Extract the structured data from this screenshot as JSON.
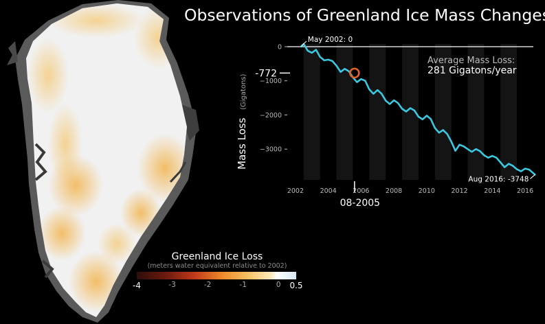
{
  "title": "Observations of Greenland Ice Mass Changes",
  "legend": {
    "title": "Greenland Ice Loss",
    "subtitle": "(meters water equivalent relative to 2002)",
    "ticks": [
      "-4",
      "-3",
      "-2",
      "-1",
      "0",
      "0.5"
    ]
  },
  "colors": {
    "line": "#3cc8e0",
    "marker": "#e0612a",
    "axis": "#ffffff",
    "band": "#141414",
    "ice": "#f2f2f2",
    "ice_loss": "#f3b54f"
  },
  "chart_data": {
    "type": "line",
    "title": "Observations of Greenland Ice Mass Changes",
    "ylabel": "Mass Loss",
    "ylabel_unit": "(Gigatons)",
    "xlabel": "",
    "xlim": [
      2001.5,
      2016.5
    ],
    "ylim": [
      -3900,
      80
    ],
    "x_ticks": [
      "2002",
      "2004",
      "2006",
      "2008",
      "2010",
      "2012",
      "2014",
      "2016"
    ],
    "y_ticks": [
      "0",
      "−1000",
      "−2000",
      "−3000"
    ],
    "grid": false,
    "series": [
      {
        "x": [
          2002.33,
          2002.5,
          2002.75,
          2003.0,
          2003.25,
          2003.5,
          2003.75,
          2004.0,
          2004.25,
          2004.5,
          2004.75,
          2005.0,
          2005.25,
          2005.5,
          2005.75,
          2006.0,
          2006.25,
          2006.5,
          2006.75,
          2007.0,
          2007.25,
          2007.5,
          2007.75,
          2008.0,
          2008.25,
          2008.5,
          2008.75,
          2009.0,
          2009.25,
          2009.5,
          2009.75,
          2010.0,
          2010.25,
          2010.5,
          2010.75,
          2011.0,
          2011.25,
          2011.5,
          2011.75,
          2012.0,
          2012.25,
          2012.5,
          2012.75,
          2013.0,
          2013.25,
          2013.5,
          2013.75,
          2014.0,
          2014.25,
          2014.5,
          2014.75,
          2015.0,
          2015.25,
          2015.5,
          2015.75,
          2016.0,
          2016.25,
          2016.6
        ],
        "y": [
          0,
          80,
          -120,
          -180,
          -90,
          -300,
          -400,
          -380,
          -420,
          -560,
          -740,
          -650,
          -720,
          -900,
          -1040,
          -950,
          -1000,
          -1250,
          -1380,
          -1270,
          -1380,
          -1580,
          -1680,
          -1570,
          -1650,
          -1820,
          -1900,
          -1800,
          -1870,
          -2050,
          -2130,
          -2020,
          -2120,
          -2380,
          -2520,
          -2440,
          -2560,
          -2780,
          -3050,
          -2870,
          -2920,
          -3000,
          -3080,
          -3000,
          -3060,
          -3180,
          -3250,
          -3200,
          -3250,
          -3390,
          -3530,
          -3430,
          -3490,
          -3590,
          -3650,
          -3570,
          -3600,
          -3748
        ]
      }
    ],
    "annotations": {
      "start_label": "May 2002: 0",
      "end_label": "Aug 2016: -3748",
      "marker_value": "-772",
      "marker_date": "08-2005",
      "marker_x": 2005.6,
      "marker_y": -772,
      "avg_line1": "Average Mass Loss:",
      "avg_line2": "281 Gigatons/year"
    }
  }
}
